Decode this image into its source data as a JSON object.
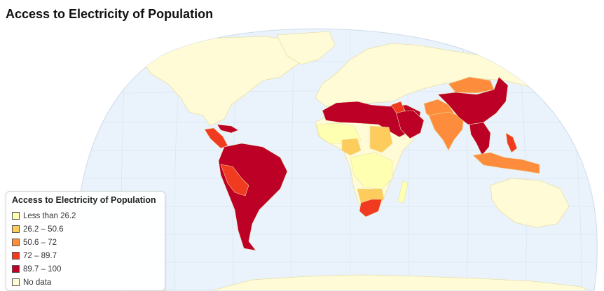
{
  "title": "Access to Electricity of Population",
  "legend": {
    "title": "Access to Electricity of Population",
    "items": [
      {
        "label": "Less than 26.2",
        "color": "#ffffb2"
      },
      {
        "label": "26.2 – 50.6",
        "color": "#fecc5c"
      },
      {
        "label": "50.6 – 72",
        "color": "#fd8d3c"
      },
      {
        "label": "72 – 89.7",
        "color": "#f03b20"
      },
      {
        "label": "89.7 – 100",
        "color": "#bd0026"
      },
      {
        "label": "No data",
        "color": "#fffbd6"
      }
    ]
  },
  "colors": {
    "ocean": "#eaf3fb",
    "graticule": "#d9e6f2",
    "land_no_data": "#fffbd6",
    "border": "#e6dfa8"
  }
}
